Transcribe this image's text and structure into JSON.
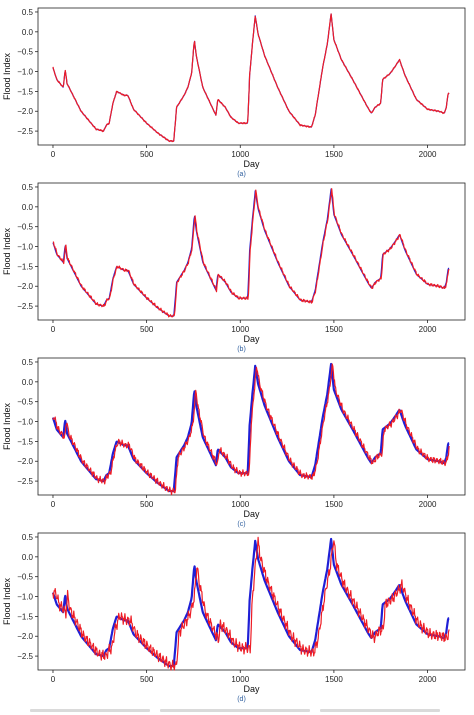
{
  "chart_data": [
    {
      "type": "line",
      "caption": "(a)",
      "ylabel": "Flood Index",
      "xlabel": "Day",
      "xlim": [
        -80,
        2200
      ],
      "ylim": [
        -2.85,
        0.6
      ],
      "xticks": [
        0,
        500,
        1000,
        1500,
        2000
      ],
      "yticks": [
        0.5,
        0.0,
        -0.5,
        -1.0,
        -1.5,
        -2.0,
        -2.5
      ],
      "ytick_labels": [
        "0.5",
        "0.0",
        "−0.5",
        "−1.0",
        "−1.5",
        "−2.0",
        "−2.5"
      ],
      "series": [
        {
          "color": "#1f1fd6",
          "offset": 0,
          "noise": 0.0
        },
        {
          "color": "#ee1c25",
          "offset": 0,
          "noise": 0.02
        }
      ]
    },
    {
      "type": "line",
      "caption": "(b)",
      "ylabel": "Flood Index",
      "xlabel": "Day",
      "xlim": [
        -80,
        2200
      ],
      "ylim": [
        -2.85,
        0.6
      ],
      "xticks": [
        0,
        500,
        1000,
        1500,
        2000
      ],
      "yticks": [
        0.5,
        0.0,
        -0.5,
        -1.0,
        -1.5,
        -2.0,
        -2.5
      ],
      "ytick_labels": [
        "0.5",
        "0.0",
        "−0.5",
        "−1.0",
        "−1.5",
        "−2.0",
        "−2.5"
      ],
      "series": [
        {
          "color": "#1f1fd6",
          "offset": 0,
          "noise": 0.0
        },
        {
          "color": "#ee1c25",
          "offset": 3,
          "noise": 0.04
        }
      ]
    },
    {
      "type": "line",
      "caption": "(c)",
      "ylabel": "Flood Index",
      "xlabel": "Day",
      "xlim": [
        -80,
        2200
      ],
      "ylim": [
        -2.85,
        0.6
      ],
      "xticks": [
        0,
        500,
        1000,
        1500,
        2000
      ],
      "yticks": [
        0.5,
        0.0,
        -0.5,
        -1.0,
        -1.5,
        -2.0,
        -2.5
      ],
      "ytick_labels": [
        "0.5",
        "0.0",
        "−0.5",
        "−1.0",
        "−1.5",
        "−2.0",
        "−2.5"
      ],
      "series": [
        {
          "color": "#1f1fd6",
          "offset": 0,
          "noise": 0.0
        },
        {
          "color": "#ee1c25",
          "offset": 8,
          "noise": 0.09
        }
      ]
    },
    {
      "type": "line",
      "caption": "(d)",
      "ylabel": "Flood Index",
      "xlabel": "Day",
      "xlim": [
        -80,
        2200
      ],
      "ylim": [
        -2.85,
        0.6
      ],
      "xticks": [
        0,
        500,
        1000,
        1500,
        2000
      ],
      "yticks": [
        0.5,
        0.0,
        -0.5,
        -1.0,
        -1.5,
        -2.0,
        -2.5
      ],
      "ytick_labels": [
        "0.5",
        "0.0",
        "−0.5",
        "−1.0",
        "−1.5",
        "−2.0",
        "−2.5"
      ],
      "series": [
        {
          "color": "#1f1fd6",
          "offset": 0,
          "noise": 0.0
        },
        {
          "color": "#ee1c25",
          "offset": 14,
          "noise": 0.15
        }
      ]
    }
  ],
  "base_series": {
    "anchors": [
      [
        0,
        -0.9
      ],
      [
        20,
        -1.2
      ],
      [
        55,
        -1.4
      ],
      [
        65,
        -0.95
      ],
      [
        75,
        -1.3
      ],
      [
        150,
        -2.0
      ],
      [
        230,
        -2.45
      ],
      [
        270,
        -2.5
      ],
      [
        285,
        -2.35
      ],
      [
        300,
        -2.3
      ],
      [
        320,
        -1.8
      ],
      [
        340,
        -1.5
      ],
      [
        360,
        -1.55
      ],
      [
        380,
        -1.6
      ],
      [
        400,
        -1.6
      ],
      [
        430,
        -1.95
      ],
      [
        500,
        -2.3
      ],
      [
        560,
        -2.55
      ],
      [
        620,
        -2.75
      ],
      [
        645,
        -2.75
      ],
      [
        660,
        -1.9
      ],
      [
        700,
        -1.6
      ],
      [
        720,
        -1.4
      ],
      [
        740,
        -1.05
      ],
      [
        755,
        -0.2
      ],
      [
        765,
        -0.6
      ],
      [
        800,
        -1.4
      ],
      [
        870,
        -2.1
      ],
      [
        880,
        -1.7
      ],
      [
        920,
        -1.9
      ],
      [
        950,
        -2.15
      ],
      [
        990,
        -2.3
      ],
      [
        1040,
        -2.3
      ],
      [
        1050,
        -1.1
      ],
      [
        1065,
        -0.3
      ],
      [
        1080,
        0.4
      ],
      [
        1095,
        -0.05
      ],
      [
        1130,
        -0.6
      ],
      [
        1200,
        -1.4
      ],
      [
        1260,
        -2.0
      ],
      [
        1320,
        -2.35
      ],
      [
        1380,
        -2.4
      ],
      [
        1400,
        -2.1
      ],
      [
        1440,
        -0.9
      ],
      [
        1465,
        -0.3
      ],
      [
        1485,
        0.45
      ],
      [
        1500,
        -0.2
      ],
      [
        1540,
        -0.7
      ],
      [
        1600,
        -1.2
      ],
      [
        1680,
        -1.9
      ],
      [
        1700,
        -2.05
      ],
      [
        1720,
        -1.9
      ],
      [
        1750,
        -1.8
      ],
      [
        1760,
        -1.2
      ],
      [
        1800,
        -1.05
      ],
      [
        1830,
        -0.85
      ],
      [
        1850,
        -0.7
      ],
      [
        1880,
        -1.1
      ],
      [
        1940,
        -1.7
      ],
      [
        2000,
        -1.95
      ],
      [
        2060,
        -2.0
      ],
      [
        2090,
        -2.05
      ],
      [
        2100,
        -1.9
      ],
      [
        2110,
        -1.55
      ]
    ]
  }
}
